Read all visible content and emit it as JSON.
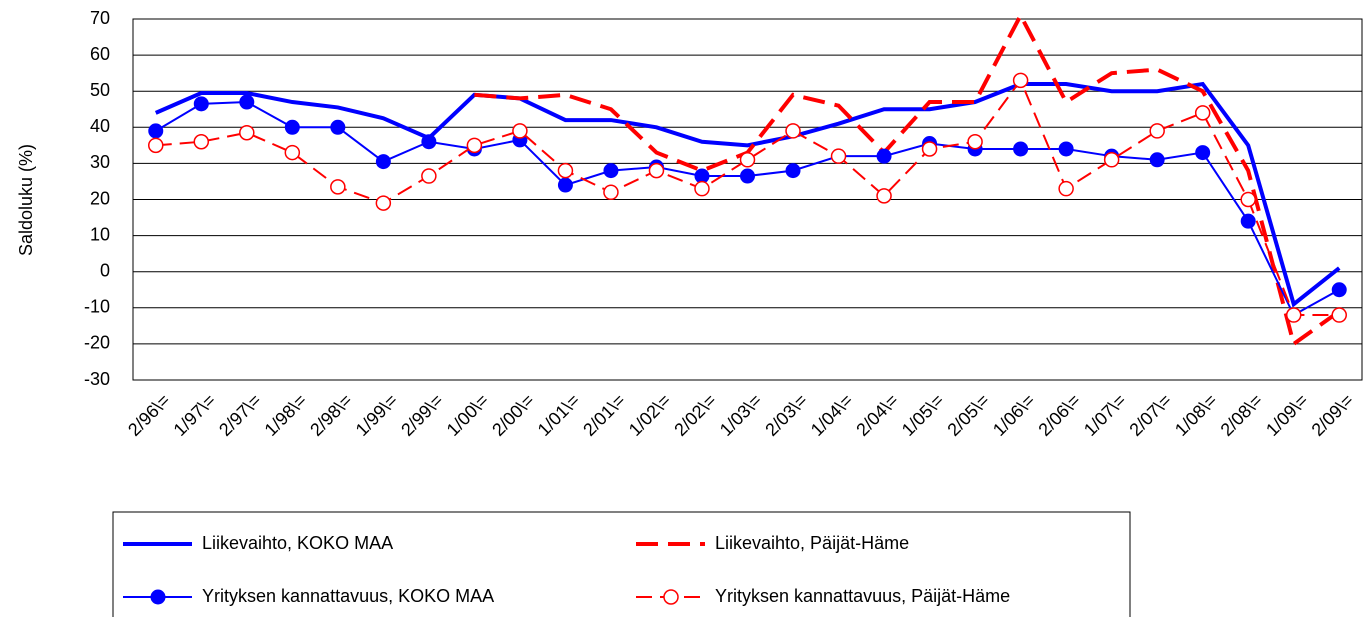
{
  "chart_data": {
    "type": "line",
    "y_label": "Saldoluku (%)",
    "categories": [
      "2/96\\=",
      "1/97\\=",
      "2/97\\=",
      "1/98\\=",
      "2/98\\=",
      "1/99\\=",
      "2/99\\=",
      "1/00\\=",
      "2/00\\=",
      "1/01\\=",
      "2/01\\=",
      "1/02\\=",
      "2/02\\=",
      "1/03\\=",
      "2/03\\=",
      "1/04\\=",
      "2/04\\=",
      "1/05\\=",
      "2/05\\=",
      "1/06\\=",
      "2/06\\=",
      "1/07\\=",
      "2/07\\=",
      "1/08\\=",
      "2/08\\=",
      "1/09\\=",
      "2/09\\="
    ],
    "series": [
      {
        "name": "Liikevaihto, KOKO MAA",
        "color": "#0000ff",
        "line_style": "solid",
        "weight": "thick",
        "marker": "none",
        "values": [
          44,
          49.5,
          49.5,
          47,
          45.5,
          42.5,
          37,
          49,
          48,
          42,
          42,
          40,
          36,
          35,
          37.5,
          41,
          45,
          45,
          47,
          52,
          52,
          50,
          50,
          52,
          35,
          -9,
          1
        ]
      },
      {
        "name": "Liikevaihto, Päijät-Häme",
        "color": "#ff0000",
        "line_style": "dashed",
        "weight": "thick",
        "marker": "none",
        "values": [
          null,
          null,
          null,
          null,
          null,
          null,
          null,
          49,
          48,
          49,
          45,
          33,
          28,
          33,
          49,
          46,
          33,
          47,
          47,
          71,
          47,
          55,
          56,
          50,
          28,
          -20,
          -11
        ]
      },
      {
        "name": "Yrityksen kannattavuus, KOKO MAA",
        "color": "#0000ff",
        "line_style": "solid",
        "weight": "thin",
        "marker": "filled-circle",
        "values": [
          39,
          46.5,
          47,
          40,
          40,
          30.5,
          36,
          34,
          36.5,
          24,
          28,
          29,
          26.5,
          26.5,
          28,
          32,
          32,
          35.5,
          34,
          34,
          34,
          32,
          31,
          33,
          14,
          -12,
          -5
        ]
      },
      {
        "name": "Yrityksen kannattavuus, Päijät-Häme",
        "color": "#ff0000",
        "line_style": "dashed",
        "weight": "thin",
        "marker": "open-circle",
        "values": [
          35,
          36,
          38.5,
          33,
          23.5,
          19,
          26.5,
          35,
          39,
          28,
          22,
          28,
          23,
          31,
          39,
          32,
          21,
          34,
          36,
          53,
          23,
          31,
          39,
          44,
          20,
          -12,
          -12
        ]
      }
    ],
    "ylim": [
      -30,
      70
    ],
    "yticks": [
      -30,
      -20,
      -10,
      0,
      10,
      20,
      30,
      40,
      50,
      60,
      70
    ],
    "grid": true
  }
}
